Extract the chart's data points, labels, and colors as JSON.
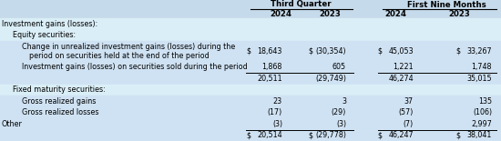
{
  "title_col1": "Third Quarter",
  "title_col2": "First Nine Months",
  "col_headers": [
    "2024",
    "2023",
    "2024",
    "2023"
  ],
  "bg_light": "#cfe2f3",
  "bg_white": "#e8f2fa",
  "rows": [
    {
      "label": "Investment gains (losses):",
      "indent": 0,
      "values": [
        null,
        null,
        null,
        null
      ],
      "show_dollar": [
        false,
        false,
        false,
        false
      ],
      "bg": "white",
      "has_bottom_border": false,
      "double_border": false
    },
    {
      "label": "Equity securities:",
      "indent": 1,
      "values": [
        null,
        null,
        null,
        null
      ],
      "show_dollar": [
        false,
        false,
        false,
        false
      ],
      "bg": "white",
      "has_bottom_border": false,
      "double_border": false
    },
    {
      "label": "Change in unrealized investment gains (losses) during the",
      "label2": "period on securities held at the end of the period",
      "indent": 2,
      "values": [
        "18,643",
        "(30,354)",
        "45,053",
        "33,267"
      ],
      "show_dollar": [
        true,
        true,
        true,
        true
      ],
      "bg": "blue",
      "has_bottom_border": false,
      "double_border": false,
      "tall": true
    },
    {
      "label": "Investment gains (losses) on securities sold during the period",
      "indent": 2,
      "values": [
        "1,868",
        "605",
        "1,221",
        "1,748"
      ],
      "show_dollar": [
        false,
        false,
        false,
        false
      ],
      "bg": "blue",
      "has_bottom_border": true,
      "double_border": false
    },
    {
      "label": "",
      "indent": 2,
      "values": [
        "20,511",
        "(29,749)",
        "46,274",
        "35,015"
      ],
      "show_dollar": [
        false,
        false,
        false,
        false
      ],
      "bg": "blue",
      "has_bottom_border": false,
      "double_border": false
    },
    {
      "label": "Fixed maturity securities:",
      "indent": 1,
      "values": [
        null,
        null,
        null,
        null
      ],
      "show_dollar": [
        false,
        false,
        false,
        false
      ],
      "bg": "white",
      "has_bottom_border": false,
      "double_border": false
    },
    {
      "label": "Gross realized gains",
      "indent": 2,
      "values": [
        "23",
        "3",
        "37",
        "135"
      ],
      "show_dollar": [
        false,
        false,
        false,
        false
      ],
      "bg": "blue",
      "has_bottom_border": false,
      "double_border": false
    },
    {
      "label": "Gross realized losses",
      "indent": 2,
      "values": [
        "(17)",
        "(29)",
        "(57)",
        "(106)"
      ],
      "show_dollar": [
        false,
        false,
        false,
        false
      ],
      "bg": "blue",
      "has_bottom_border": false,
      "double_border": false
    },
    {
      "label": "Other",
      "indent": 0,
      "values": [
        "(3)",
        "(3)",
        "(7)",
        "2,997"
      ],
      "show_dollar": [
        false,
        false,
        false,
        false
      ],
      "bg": "blue",
      "has_bottom_border": true,
      "double_border": false
    },
    {
      "label": "",
      "indent": 0,
      "values": [
        "20,514",
        "(29,778)",
        "46,247",
        "38,041"
      ],
      "show_dollar": [
        true,
        true,
        true,
        true
      ],
      "bg": "blue",
      "has_bottom_border": true,
      "double_border": true
    }
  ],
  "font_size": 5.8,
  "header_font_size": 6.2
}
